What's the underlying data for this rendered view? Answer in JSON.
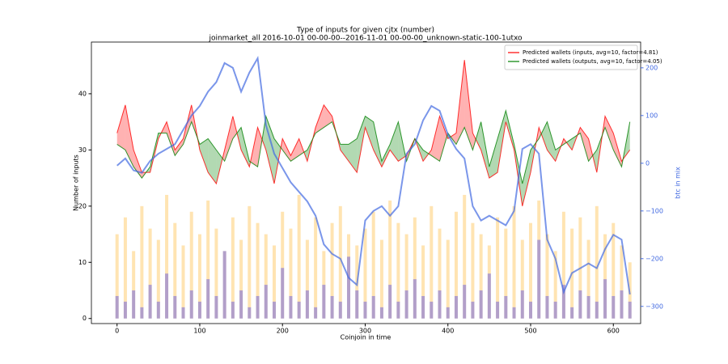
{
  "chart_data": {
    "type": "line",
    "title": "Type of inputs for given cjtx (number)",
    "subtitle": "joinmarket_all 2016-10-01 00-00-00--2016-11-01 00-00-00_unknown-static-100-1utxo",
    "xlabel": "Coinjoin in time",
    "ylabel": "Number of inputs",
    "y2label": "btc in mix",
    "x": [
      0,
      10,
      20,
      30,
      40,
      50,
      60,
      70,
      80,
      90,
      100,
      110,
      120,
      130,
      140,
      150,
      160,
      170,
      180,
      190,
      200,
      210,
      220,
      230,
      240,
      250,
      260,
      270,
      280,
      290,
      300,
      310,
      320,
      330,
      340,
      350,
      360,
      370,
      380,
      390,
      400,
      410,
      420,
      430,
      440,
      450,
      460,
      470,
      480,
      490,
      500,
      510,
      520,
      530,
      540,
      550,
      560,
      570,
      580,
      590,
      600,
      610,
      620
    ],
    "xlim": [
      -31,
      633
    ],
    "ylim": [
      -0.9,
      49.2
    ],
    "y2lim": [
      -336,
      254
    ],
    "xticks": [
      0,
      100,
      200,
      300,
      400,
      500,
      600
    ],
    "yticks": [
      0,
      10,
      20,
      30,
      40
    ],
    "y2ticks": [
      {
        "value": -300,
        "label": "−300"
      },
      {
        "value": -200,
        "label": "−200"
      },
      {
        "value": -100,
        "label": "−100"
      },
      0,
      100,
      200
    ],
    "legend": "upper right",
    "fill_between": true,
    "series": [
      {
        "name": "Predicted wallets (inputs, avg=10, factor=4.81)",
        "color": "#ff0000",
        "values": [
          33,
          38,
          30,
          26,
          26,
          32,
          35,
          30,
          32,
          38,
          30,
          26,
          24,
          30,
          36,
          30,
          27,
          34,
          30,
          24,
          32,
          29,
          32,
          28,
          34,
          38,
          36,
          30,
          28,
          26,
          34,
          30,
          27,
          30,
          28,
          29,
          32,
          28,
          30,
          36,
          32,
          33,
          46,
          33,
          30,
          25,
          26,
          35,
          30,
          20,
          26,
          34,
          30,
          28,
          32,
          30,
          34,
          32,
          26,
          36,
          33,
          28,
          30
        ]
      },
      {
        "name": "Predicted wallets (outputs, avg=10, factor=4.05)",
        "color": "#008000",
        "values": [
          31,
          30,
          27,
          25,
          27,
          33,
          33,
          29,
          31,
          35,
          31,
          32,
          30,
          28,
          32,
          34,
          28,
          27,
          36,
          32,
          30,
          28,
          29,
          30,
          33,
          34,
          35,
          31,
          31,
          32,
          36,
          35,
          28,
          31,
          35,
          28,
          32,
          30,
          29,
          28,
          33,
          31,
          34,
          30,
          35,
          27,
          32,
          37,
          31,
          24,
          30,
          32,
          35,
          30,
          31,
          32,
          33,
          28,
          30,
          34,
          30,
          27,
          35
        ]
      },
      {
        "color": "#4169e1",
        "axis": "y2",
        "values": [
          -5,
          10,
          -15,
          -20,
          5,
          20,
          30,
          40,
          70,
          100,
          120,
          150,
          170,
          210,
          200,
          150,
          190,
          220,
          80,
          20,
          -10,
          -40,
          -60,
          -80,
          -110,
          -170,
          -190,
          -200,
          -240,
          -255,
          -120,
          -100,
          -90,
          -110,
          -90,
          20,
          40,
          90,
          120,
          110,
          60,
          30,
          10,
          -90,
          -120,
          -110,
          -120,
          -130,
          -100,
          30,
          40,
          20,
          -160,
          -200,
          -270,
          -230,
          -220,
          -210,
          -220,
          -180,
          -150,
          -160,
          -275
        ]
      },
      {
        "type": "bar",
        "color": "#ffa500",
        "values": [
          15,
          18,
          12,
          20,
          16,
          14,
          22,
          17,
          13,
          19,
          15,
          21,
          16,
          12,
          18,
          14,
          20,
          17,
          15,
          13,
          19,
          16,
          22,
          14,
          18,
          12,
          17,
          20,
          15,
          13,
          16,
          19,
          14,
          21,
          17,
          15,
          18,
          13,
          20,
          16,
          14,
          19,
          22,
          17,
          15,
          13,
          18,
          16,
          20,
          14,
          17,
          21,
          15,
          12,
          19,
          16,
          18,
          14,
          20,
          15,
          17,
          13,
          10
        ]
      },
      {
        "type": "bar",
        "color": "#0000ff",
        "values": [
          4,
          3,
          5,
          2,
          6,
          3,
          8,
          4,
          2,
          5,
          3,
          7,
          4,
          12,
          3,
          5,
          2,
          4,
          6,
          3,
          9,
          4,
          3,
          5,
          2,
          6,
          4,
          3,
          11,
          5,
          3,
          4,
          2,
          6,
          3,
          5,
          7,
          4,
          3,
          5,
          2,
          4,
          6,
          3,
          5,
          8,
          3,
          4,
          2,
          5,
          3,
          14,
          4,
          3,
          6,
          2,
          5,
          4,
          3,
          7,
          4,
          5,
          3
        ]
      }
    ]
  }
}
